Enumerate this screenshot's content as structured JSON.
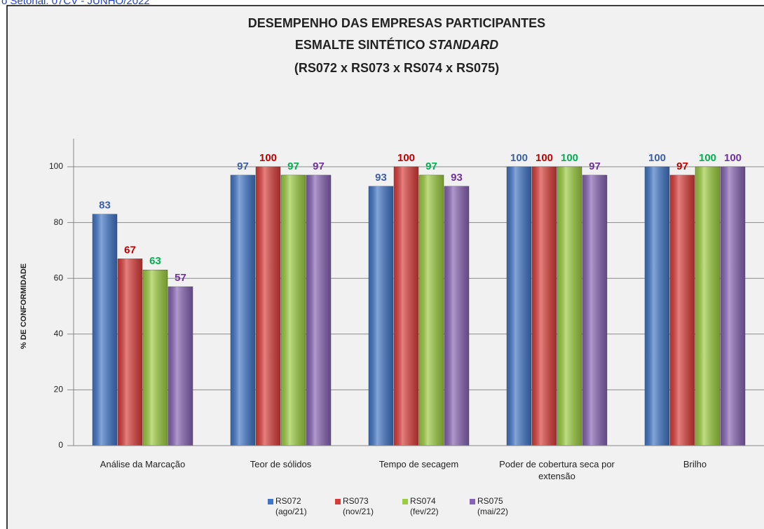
{
  "header": "o Setorial: 07CV - JUNHO/2022",
  "chart_data": {
    "type": "bar",
    "title": {
      "line1": "DESEMPENHO DAS EMPRESAS PARTICIPANTES",
      "line2": "ESMALTE SINTÉTICO",
      "line2_italic": "STANDARD",
      "line3": "(RS072 x RS073 x RS074 x RS075)"
    },
    "y_label": "% DE CONFORMIDADE",
    "categories": [
      "Análise da Marcação",
      "Teor de sólidos",
      "Tempo de secagem",
      "Poder de cobertura seca por extensão",
      "Brilho"
    ],
    "series": [
      {
        "name": "RS072 (ago/21)",
        "color": "#3f74c6",
        "label_color": "#3b60a8",
        "values": [
          83,
          97,
          93,
          100,
          100
        ]
      },
      {
        "name": "RS073 (nov/21)",
        "color": "#d83b37",
        "label_color": "#c00000",
        "values": [
          67,
          100,
          100,
          100,
          97
        ]
      },
      {
        "name": "RS074 (fev/22)",
        "color": "#9bcb3e",
        "label_color": "#00b050",
        "values": [
          63,
          97,
          97,
          100,
          100
        ]
      },
      {
        "name": "RS075 (mai/22)",
        "color": "#8562b2",
        "label_color": "#7030a0",
        "values": [
          57,
          97,
          93,
          97,
          100
        ]
      }
    ],
    "ylim": [
      0,
      100
    ],
    "yticks": [
      0,
      20,
      40,
      60,
      80,
      100
    ],
    "grid": true,
    "legend": "bottom"
  }
}
